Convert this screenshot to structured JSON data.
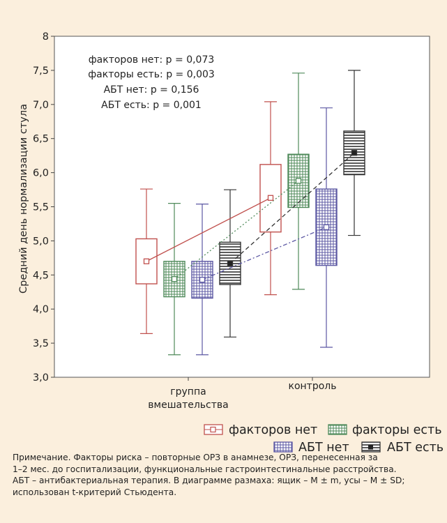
{
  "chart_data": {
    "type": "box",
    "ylabel": "Средний день нормализации стула",
    "ylim": [
      3.0,
      8.0
    ],
    "yticks": [
      "3,0",
      "3,5",
      "4,0",
      "4,5",
      "5,0",
      "5,5",
      "6,0",
      "6,5",
      "7,0",
      "7,5",
      "8"
    ],
    "categories": [
      "группа вмешательства",
      "контроль"
    ],
    "category_lines": [
      [
        "группа",
        "вмешательства"
      ],
      [
        "контроль"
      ]
    ],
    "annotations": [
      "факторов нет: p = 0,073",
      "факторы есть: p = 0,003",
      "АБТ нет: p = 0,156",
      "АБТ есть: p = 0,001"
    ],
    "legend_position": "bottom-right",
    "series": [
      {
        "name": "факторов нет",
        "color": "#c0504d",
        "fill": "plain",
        "line": "solid",
        "boxes": [
          {
            "mean": 4.7,
            "box_low": 4.37,
            "box_high": 5.03,
            "whisker_low": 3.64,
            "whisker_high": 5.76
          },
          {
            "mean": 5.63,
            "box_low": 5.13,
            "box_high": 6.12,
            "whisker_low": 4.21,
            "whisker_high": 7.04
          }
        ]
      },
      {
        "name": "факторы есть",
        "color": "#4f8a5a",
        "fill": "grid",
        "line": "dotted",
        "boxes": [
          {
            "mean": 4.44,
            "box_low": 4.18,
            "box_high": 4.7,
            "whisker_low": 3.33,
            "whisker_high": 5.55
          },
          {
            "mean": 5.88,
            "box_low": 5.49,
            "box_high": 6.27,
            "whisker_low": 4.29,
            "whisker_high": 7.46
          }
        ]
      },
      {
        "name": "АБТ нет",
        "color": "#5c58a3",
        "fill": "grid",
        "line": "dash-dot",
        "boxes": [
          {
            "mean": 4.43,
            "box_low": 4.16,
            "box_high": 4.7,
            "whisker_low": 3.33,
            "whisker_high": 5.54
          },
          {
            "mean": 5.2,
            "box_low": 4.64,
            "box_high": 5.76,
            "whisker_low": 3.44,
            "whisker_high": 6.95
          }
        ]
      },
      {
        "name": "АБТ есть",
        "color": "#333333",
        "fill": "stripes",
        "line": "dashed",
        "boxes": [
          {
            "mean": 4.67,
            "box_low": 4.36,
            "box_high": 4.98,
            "whisker_low": 3.59,
            "whisker_high": 5.75
          },
          {
            "mean": 6.29,
            "box_low": 5.97,
            "box_high": 6.61,
            "whisker_low": 5.08,
            "whisker_high": 7.5
          }
        ]
      }
    ]
  },
  "note_lines": [
    "Примечание. Факторы риска – повторные ОРЗ в анамнезе, ОРЗ, перенесенная за",
    "1–2 мес. до госпитализации, функциональные гастроинтестинальные расстройства.",
    "АБТ – антибактериальная терапия. В диаграмме размаха: ящик – M ± m, усы – M ± SD;",
    "использован t-критерий Стьюдента."
  ]
}
